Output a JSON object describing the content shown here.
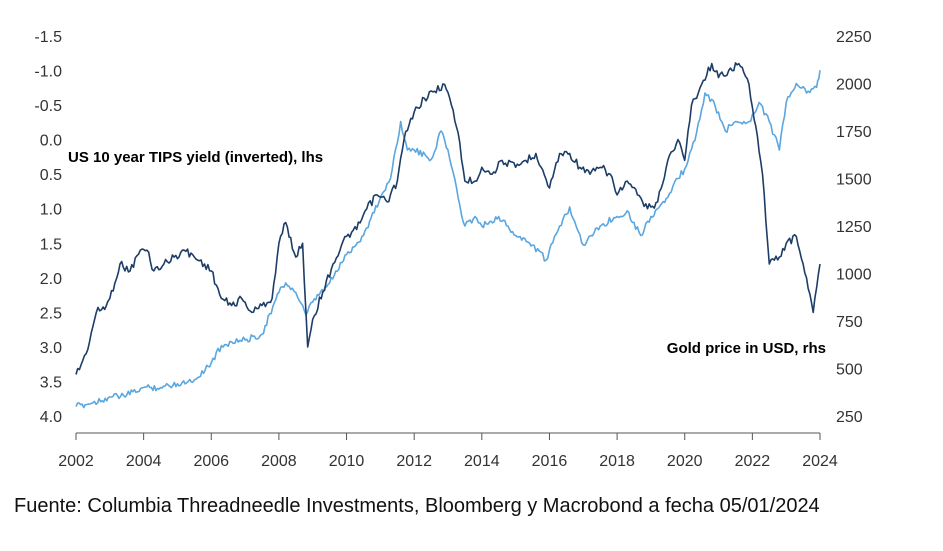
{
  "chart_data": {
    "type": "line",
    "title": "",
    "source": "Fuente: Columbia Threadneedle Investments, Bloomberg y Macrobond a fecha 05/01/2024",
    "x_ticks": [
      "2002",
      "2004",
      "2006",
      "2008",
      "2010",
      "2012",
      "2014",
      "2016",
      "2018",
      "2020",
      "2022",
      "2024"
    ],
    "xlim": [
      2002,
      2024
    ],
    "y_left": {
      "ticks": [
        "-1.5",
        "-1.0",
        "-0.5",
        "0.0",
        "0.5",
        "1.0",
        "1.5",
        "2.0",
        "2.5",
        "3.0",
        "3.5",
        "4.0"
      ],
      "range": [
        -1.5,
        4.0
      ],
      "inverted": true
    },
    "y_right": {
      "ticks": [
        "2250",
        "2000",
        "1750",
        "1500",
        "1250",
        "1000",
        "750",
        "500",
        "250"
      ],
      "range": [
        250,
        2250
      ]
    },
    "grid": false,
    "colors": {
      "tips": "#1d3d66",
      "gold": "#5aa6df"
    },
    "series": [
      {
        "name": "US 10 year TIPS yield (inverted), lhs",
        "axis": "left",
        "x": [
          2002.0,
          2002.3,
          2002.6,
          2002.9,
          2003.0,
          2003.3,
          2003.6,
          2003.9,
          2004.1,
          2004.3,
          2004.6,
          2004.9,
          2005.2,
          2005.5,
          2005.8,
          2006.0,
          2006.3,
          2006.6,
          2006.9,
          2007.2,
          2007.5,
          2007.8,
          2008.0,
          2008.2,
          2008.5,
          2008.7,
          2008.85,
          2009.0,
          2009.3,
          2009.6,
          2010.0,
          2010.3,
          2010.6,
          2010.9,
          2011.2,
          2011.5,
          2011.7,
          2012.0,
          2012.3,
          2012.6,
          2012.9,
          2013.1,
          2013.3,
          2013.5,
          2013.8,
          2014.0,
          2014.3,
          2014.6,
          2015.0,
          2015.3,
          2015.6,
          2016.0,
          2016.3,
          2016.6,
          2016.9,
          2017.2,
          2017.5,
          2017.8,
          2018.0,
          2018.3,
          2018.6,
          2018.9,
          2019.2,
          2019.5,
          2019.8,
          2020.0,
          2020.2,
          2020.5,
          2020.8,
          2021.0,
          2021.3,
          2021.6,
          2021.9,
          2022.1,
          2022.3,
          2022.5,
          2022.8,
          2023.0,
          2023.3,
          2023.6,
          2023.8,
          2024.0
        ],
        "y": [
          3.4,
          3.1,
          2.5,
          2.4,
          2.3,
          1.8,
          1.9,
          1.6,
          1.6,
          1.9,
          1.8,
          1.7,
          1.6,
          1.7,
          1.8,
          1.9,
          2.3,
          2.4,
          2.3,
          2.5,
          2.4,
          2.3,
          1.5,
          1.2,
          1.7,
          1.5,
          3.0,
          2.6,
          2.2,
          1.8,
          1.4,
          1.3,
          1.0,
          0.8,
          0.9,
          0.6,
          0.0,
          -0.4,
          -0.6,
          -0.7,
          -0.8,
          -0.5,
          -0.1,
          0.6,
          0.6,
          0.4,
          0.5,
          0.3,
          0.4,
          0.3,
          0.2,
          0.7,
          0.2,
          0.2,
          0.4,
          0.5,
          0.4,
          0.5,
          0.8,
          0.6,
          0.8,
          1.0,
          0.9,
          0.3,
          0.0,
          0.3,
          -0.5,
          -0.8,
          -1.1,
          -0.9,
          -1.0,
          -1.1,
          -0.8,
          -0.2,
          0.5,
          1.8,
          1.7,
          1.5,
          1.4,
          2.0,
          2.5,
          1.8
        ]
      },
      {
        "name": "Gold price in USD, rhs",
        "axis": "right",
        "x": [
          2002.0,
          2002.5,
          2003.0,
          2003.5,
          2004.0,
          2004.5,
          2005.0,
          2005.5,
          2006.0,
          2006.3,
          2006.6,
          2007.0,
          2007.5,
          2008.0,
          2008.2,
          2008.5,
          2008.8,
          2009.0,
          2009.5,
          2010.0,
          2010.5,
          2011.0,
          2011.3,
          2011.6,
          2011.8,
          2012.0,
          2012.5,
          2012.8,
          2013.0,
          2013.3,
          2013.5,
          2013.8,
          2014.0,
          2014.5,
          2015.0,
          2015.5,
          2015.9,
          2016.3,
          2016.6,
          2017.0,
          2017.5,
          2018.0,
          2018.3,
          2018.7,
          2019.0,
          2019.5,
          2019.8,
          2020.0,
          2020.3,
          2020.6,
          2020.9,
          2021.2,
          2021.5,
          2021.9,
          2022.2,
          2022.5,
          2022.8,
          2023.0,
          2023.3,
          2023.6,
          2023.9,
          2024.0
        ],
        "y": [
          300,
          320,
          350,
          360,
          400,
          400,
          420,
          440,
          530,
          620,
          640,
          650,
          680,
          900,
          950,
          900,
          780,
          850,
          950,
          1100,
          1200,
          1400,
          1500,
          1800,
          1650,
          1650,
          1600,
          1750,
          1650,
          1400,
          1250,
          1300,
          1250,
          1300,
          1200,
          1150,
          1070,
          1250,
          1350,
          1150,
          1250,
          1300,
          1330,
          1200,
          1300,
          1400,
          1500,
          1550,
          1700,
          1950,
          1880,
          1750,
          1800,
          1800,
          1900,
          1800,
          1650,
          1900,
          2000,
          1950,
          1980,
          2070
        ]
      }
    ]
  }
}
